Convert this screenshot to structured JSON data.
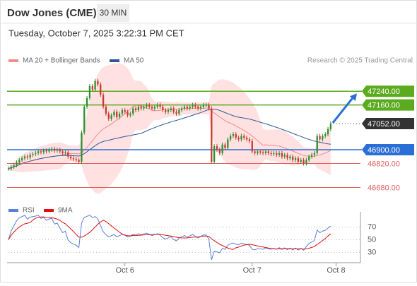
{
  "chart_data": {
    "type": "candlestick",
    "title": "Dow Jones (CME)",
    "timeframe": "30 MIN",
    "subtitle": "Tuesday, October 7, 2025 3:22:31 PM CET",
    "source": "Research © 2025 Trading Central",
    "legend": [
      {
        "name": "MA 20 + Bollinger Bands",
        "color": "#f08c8c"
      },
      {
        "name": "MA 50",
        "color": "#2b5797"
      }
    ],
    "close": [
      46790,
      46800,
      46810,
      46825,
      46840,
      46850,
      46860,
      46855,
      46870,
      46875,
      46880,
      46890,
      46885,
      46895,
      46890,
      46900,
      46905,
      46895,
      46900,
      46890,
      46880,
      46885,
      46860,
      46850,
      46845,
      46840,
      46830,
      47000,
      47150,
      47200,
      47270,
      47250,
      47300,
      47280,
      47220,
      47150,
      47110,
      47080,
      47100,
      47120,
      47090,
      47110,
      47130,
      47120,
      47100,
      47110,
      47140,
      47130,
      47150,
      47140,
      47150,
      47160,
      47150,
      47140,
      47150,
      47160,
      47150,
      47130,
      47120,
      47130,
      47140,
      47120,
      47110,
      47130,
      47140,
      47150,
      47140,
      47150,
      47160,
      47150,
      47140,
      47150,
      47160,
      47160,
      47140,
      46830,
      46920,
      46900,
      46880,
      46930,
      46910,
      46960,
      46980,
      46990,
      46970,
      46960,
      46980,
      46970,
      46960,
      46950,
      46890,
      46880,
      46890,
      46885,
      46880,
      46890,
      46880,
      46875,
      46880,
      46870,
      46880,
      46860,
      46870,
      46850,
      46860,
      46840,
      46850,
      46830,
      46840,
      46820,
      46840,
      46860,
      46870,
      46880,
      46980,
      46960,
      46980,
      46990,
      47020,
      47052
    ],
    "up_color": "#2f8f2f",
    "down_color": "#c83a2e",
    "xlim": [
      0,
      130
    ],
    "xticks": [
      {
        "value": 43,
        "label": "Oct 6"
      },
      {
        "value": 90,
        "label": "Oct 7"
      },
      {
        "value": 121,
        "label": "Oct 8"
      }
    ],
    "ylim": [
      46600,
      47360
    ],
    "levels": {
      "values": [
        47240,
        47160,
        47052,
        46900,
        46820,
        46680
      ],
      "value_labels": [
        "47240.00",
        "47160.00",
        "47052.00",
        "46900.00",
        "46820.00",
        "46680.00"
      ],
      "colors": [
        "#5aab1e",
        "#5aab1e",
        "#333333",
        "#2b6fd6",
        "#e06060",
        "#e06060"
      ]
    },
    "rsi": {
      "legend": [
        {
          "name": "RSI",
          "color": "#5b7fd6"
        },
        {
          "name": "9MA",
          "color": "#e01010"
        }
      ],
      "ylim": [
        16,
        95
      ],
      "yticks": [
        70,
        50,
        30
      ]
    }
  }
}
